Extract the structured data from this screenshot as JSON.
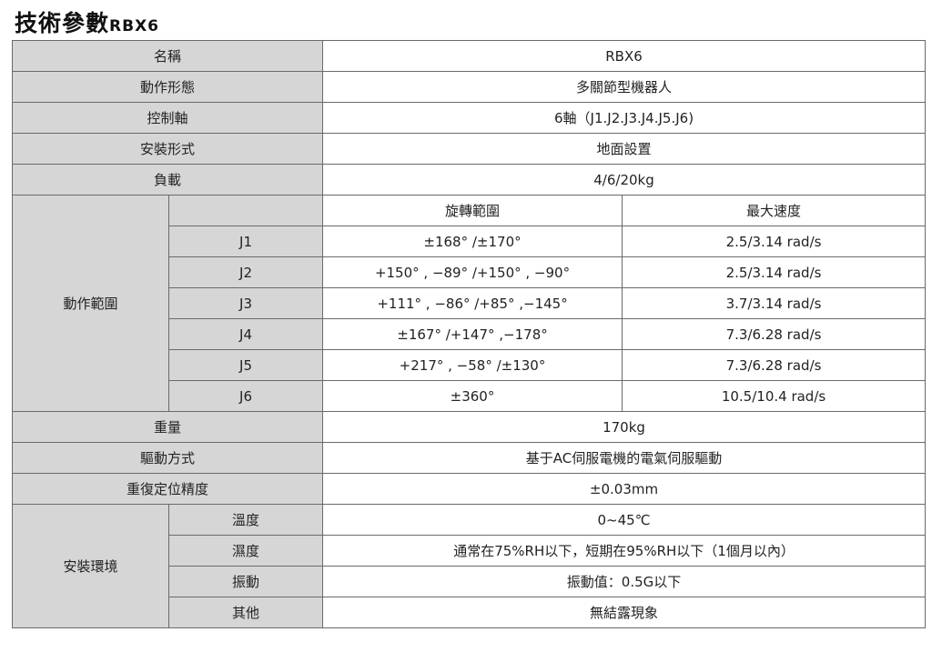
{
  "title": {
    "main": "技術參數",
    "model": "RBX6"
  },
  "rows": {
    "name": {
      "label": "名稱",
      "value": "RBX6"
    },
    "motion_type": {
      "label": "動作形態",
      "value": "多關節型機器人"
    },
    "axes": {
      "label": "控制軸",
      "value": "6軸（J1.J2.J3.J4.J5.J6)"
    },
    "mounting": {
      "label": "安裝形式",
      "value": "地面設置"
    },
    "payload": {
      "label": "負載",
      "value": "4/6/20kg"
    },
    "range": {
      "label": "動作範圍",
      "col_rotation": "旋轉範圍",
      "col_speed": "最大速度",
      "joints": [
        {
          "joint": "J1",
          "rotation": "±168° /±170°",
          "speed": "2.5/3.14 rad/s"
        },
        {
          "joint": "J2",
          "rotation": "+150° , −89° /+150° , −90°",
          "speed": "2.5/3.14 rad/s"
        },
        {
          "joint": "J3",
          "rotation": "+111° , −86° /+85° ,−145°",
          "speed": "3.7/3.14 rad/s"
        },
        {
          "joint": "J4",
          "rotation": "±167° /+147° ,−178°",
          "speed": "7.3/6.28 rad/s"
        },
        {
          "joint": "J5",
          "rotation": "+217° , −58° /±130°",
          "speed": "7.3/6.28 rad/s"
        },
        {
          "joint": "J6",
          "rotation": "±360°",
          "speed": "10.5/10.4 rad/s"
        }
      ]
    },
    "weight": {
      "label": "重量",
      "value": "170kg"
    },
    "drive": {
      "label": "驅動方式",
      "value": "基于AC伺服電機的電氣伺服驅動"
    },
    "repeatability": {
      "label": "重復定位精度",
      "value": "±0.03mm"
    },
    "environment": {
      "label": "安裝環境",
      "items": [
        {
          "label": "溫度",
          "value": "0~45℃"
        },
        {
          "label": "濕度",
          "value": "通常在75%RH以下，短期在95%RH以下（1個月以內）"
        },
        {
          "label": "振動",
          "value": "振動值：0.5G以下"
        },
        {
          "label": "其他",
          "value": "無結露現象"
        }
      ]
    }
  }
}
